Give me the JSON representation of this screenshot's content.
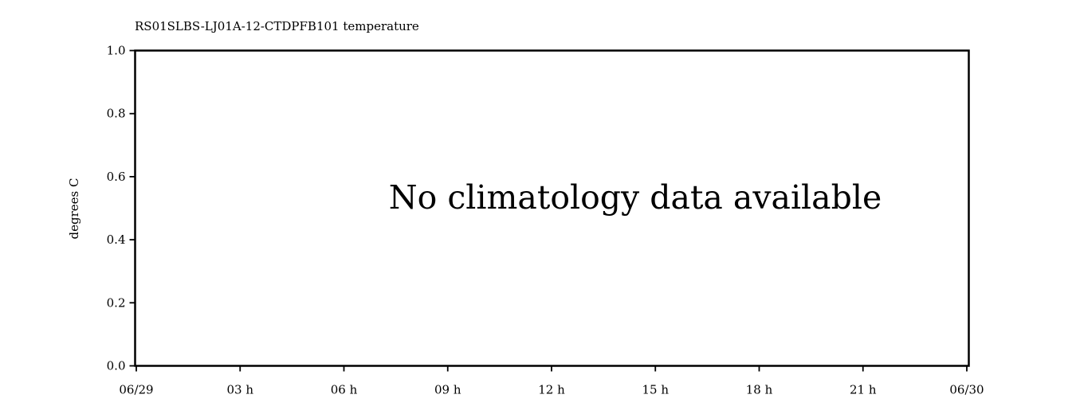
{
  "chart_data": {
    "type": "line",
    "title": "RS01SLBS-LJ01A-12-CTDPFB101 temperature",
    "xlabel": "",
    "ylabel": "degrees C",
    "ylim": [
      0.0,
      1.0
    ],
    "yticks": [
      "0.0",
      "0.2",
      "0.4",
      "0.6",
      "0.8",
      "1.0"
    ],
    "xticks": [
      "06/29",
      "03 h",
      "06 h",
      "09 h",
      "12 h",
      "15 h",
      "18 h",
      "21 h",
      "06/30"
    ],
    "series": [],
    "grid": false,
    "message": "No climatology data available"
  }
}
